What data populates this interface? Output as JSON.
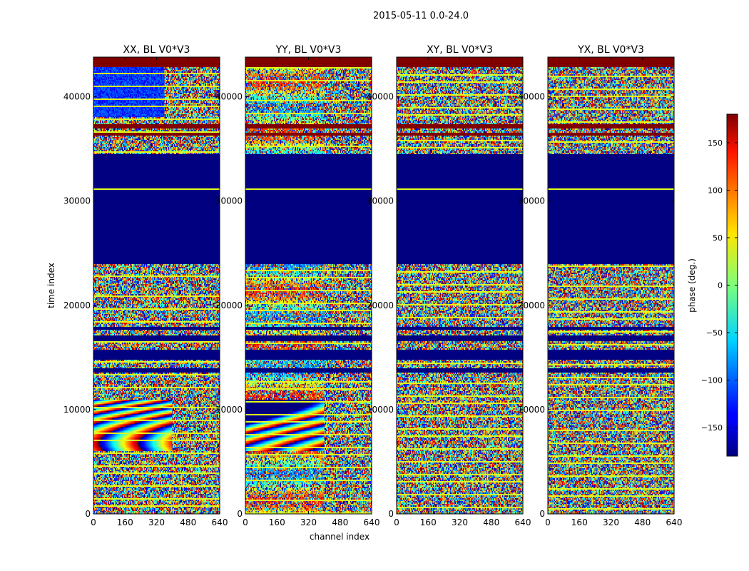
{
  "chart_data": {
    "type": "heatmap",
    "title": "2015-05-11 0.0-24.0",
    "xlabel": "channel index",
    "ylabel": "time index",
    "xlim": [
      0,
      640
    ],
    "ylim": [
      0,
      43800
    ],
    "x_ticks": [
      0,
      160,
      320,
      480,
      640
    ],
    "y_ticks": [
      0,
      10000,
      20000,
      30000,
      40000
    ],
    "colorbar": {
      "label": "phase (deg.)",
      "range": [
        -180,
        180
      ],
      "ticks": [
        -150,
        -100,
        -50,
        0,
        50,
        100,
        150
      ],
      "tick_labels": [
        "−150",
        "−100",
        "−50",
        "0",
        "50",
        "100",
        "150"
      ],
      "colormap": "jet"
    },
    "panels": [
      {
        "title": "XX, BL V0*V3"
      },
      {
        "title": "YY, BL V0*V3"
      },
      {
        "title": "XY, BL V0*V3"
      },
      {
        "title": "YX, BL V0*V3"
      }
    ],
    "bands": {
      "flagged_phase_max": [
        [
          37000,
          37400
        ],
        [
          36300,
          36600
        ],
        [
          42800,
          43800
        ]
      ],
      "flagged_phase_min": [
        [
          24000,
          34500
        ],
        [
          14800,
          15800
        ],
        [
          16600,
          17100
        ],
        [
          13600,
          14000
        ],
        [
          17600,
          17900
        ]
      ]
    }
  },
  "colors": {
    "jet_min": "#00007f",
    "jet_max": "#7f0000",
    "axis": "#000000"
  }
}
